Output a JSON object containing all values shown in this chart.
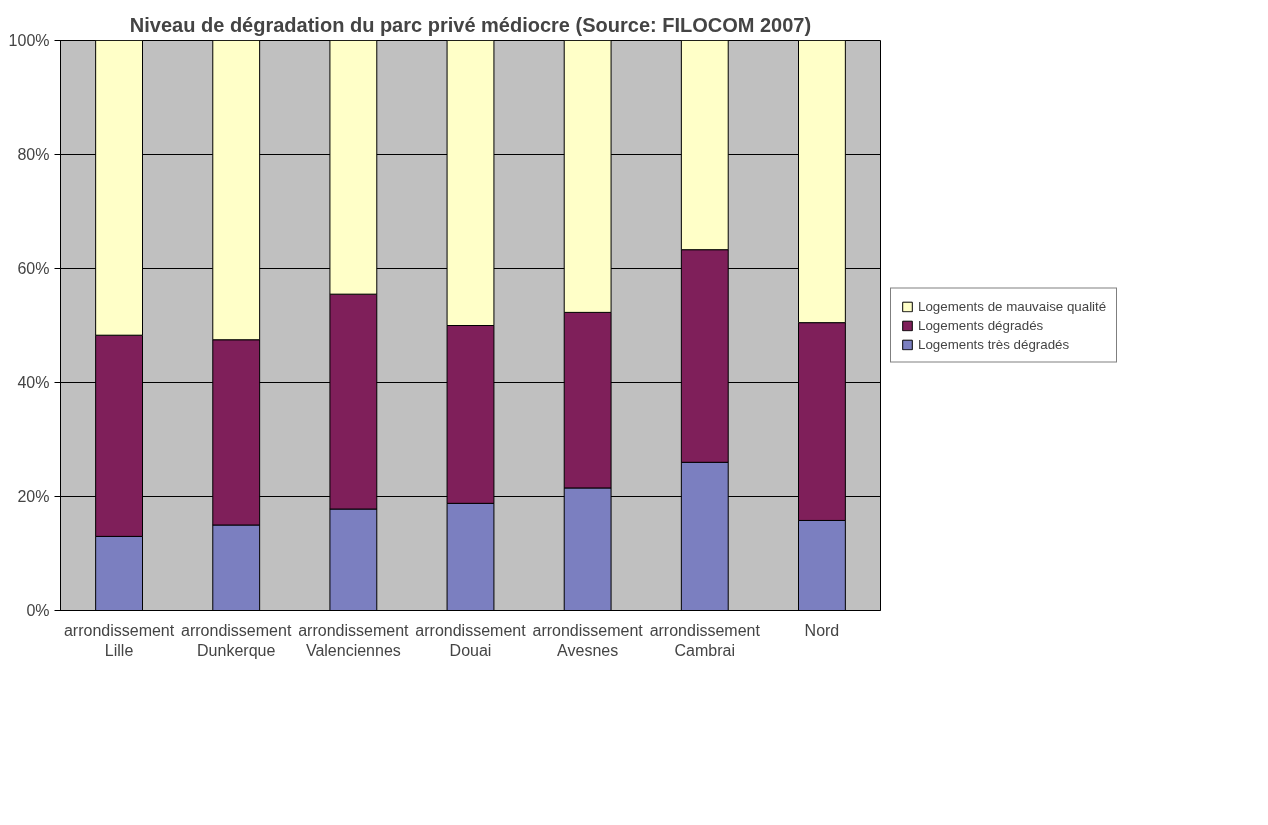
{
  "chart_data": {
    "type": "bar",
    "stacked": true,
    "title": "Niveau de dégradation du parc privé médiocre (Source: FILOCOM 2007)",
    "categories": [
      "arrondissement Lille",
      "arrondissement Dunkerque",
      "arrondissement Valenciennes",
      "arrondissement Douai",
      "arrondissement Avesnes",
      "arrondissement Cambrai",
      "Nord"
    ],
    "series": [
      {
        "name": "Logements très dégradés",
        "color": "#7b7fc0",
        "values": [
          13,
          15,
          17.8,
          18.8,
          21.5,
          26,
          15.8
        ]
      },
      {
        "name": "Logements dégradés",
        "color": "#7f1f5a",
        "values": [
          35.3,
          32.5,
          37.7,
          31.2,
          30.8,
          37.3,
          34.7
        ]
      },
      {
        "name": "Logements de mauvaise qualité",
        "color": "#ffffc8",
        "values": [
          51.7,
          52.5,
          44.5,
          50,
          47.7,
          36.7,
          49.5
        ]
      }
    ],
    "ylim": [
      0,
      100
    ],
    "yticks": [
      {
        "value": 0,
        "label": "0%"
      },
      {
        "value": 20,
        "label": "20%"
      },
      {
        "value": 40,
        "label": "40%"
      },
      {
        "value": 60,
        "label": "60%"
      },
      {
        "value": 80,
        "label": "80%"
      },
      {
        "value": 100,
        "label": "100%"
      }
    ],
    "grid": "y",
    "legend": "right"
  }
}
